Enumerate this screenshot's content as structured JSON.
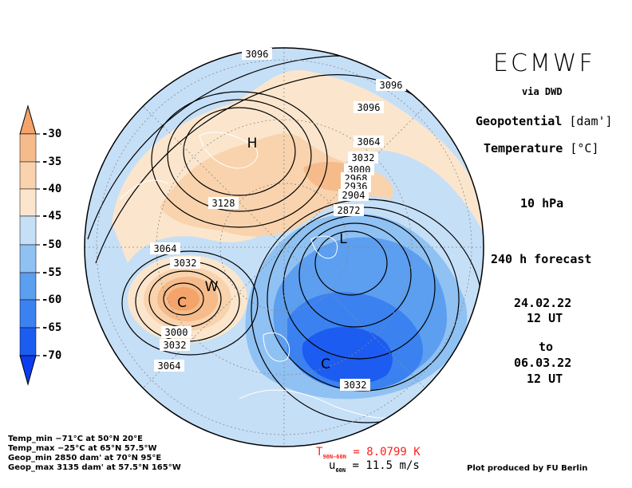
{
  "header": {
    "title": "ECMWF",
    "via": "via DWD",
    "field1_label": "Geopotential",
    "field1_unit": "[dam']",
    "field2_label": "Temperature",
    "field2_unit": "[°C]",
    "level": "10 hPa",
    "forecast": "240 h forecast",
    "init_date": "24.02.22",
    "init_time": "12 UT",
    "to": "to",
    "valid_date": "06.03.22",
    "valid_time": "12 UT"
  },
  "colorbar": {
    "ticks": [
      "-30",
      "-35",
      "-40",
      "-45",
      "-50",
      "-55",
      "-60",
      "-65",
      "-70"
    ],
    "colors": [
      "#f4a46a",
      "#f6bb8b",
      "#f9d3ad",
      "#fbe6cd",
      "#c5dff7",
      "#8fc1f3",
      "#5c9ef0",
      "#3b82f0",
      "#1c5cf0",
      "#0a3ef0"
    ]
  },
  "contour_labels": [
    "3096",
    "3096",
    "3096",
    "3064",
    "3032",
    "3000",
    "2968",
    "2936",
    "2904",
    "2872",
    "3128",
    "3064",
    "3032",
    "3000",
    "3032",
    "3064",
    "3032"
  ],
  "markers": {
    "high": "H",
    "low": "L",
    "warm": "W",
    "cold": "C"
  },
  "stats": {
    "temp_min": "Temp_min −71°C at 50°N 20°E",
    "temp_max": "Temp_max −25°C at 65°N 57.5°W",
    "geop_min": "Geop_min 2850 dam' at 70°N 95°E",
    "geop_max": "Geop_max 3135 dam' at 57.5°N 165°W"
  },
  "diagnostics": {
    "t_label": "T",
    "t_sub": "90N−60N",
    "t_value": "= 8.0799 K",
    "u_label": "u",
    "u_sub": "60N",
    "u_value": "= 11.5 m/s"
  },
  "credit": "Plot produced by FU Berlin"
}
